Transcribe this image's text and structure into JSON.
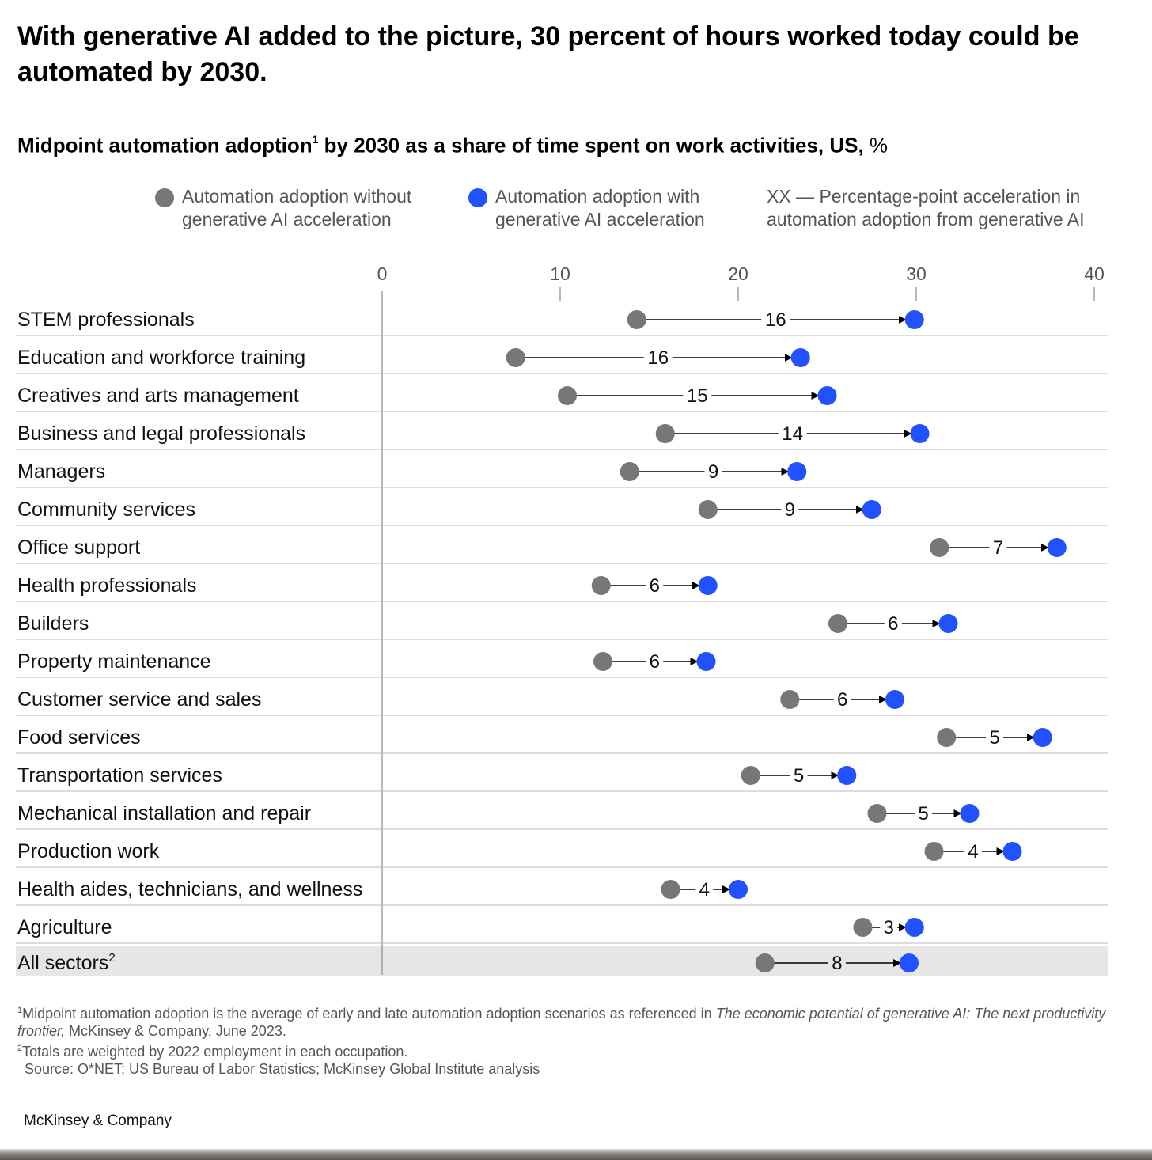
{
  "header": {
    "title": "With generative AI added to the picture, 30 percent of hours worked today could be automated by 2030.",
    "subtitle_bold": "Midpoint automation adoption",
    "subtitle_sup": "1",
    "subtitle_bold_2": " by 2030 as a share of time spent on work activities, US,",
    "subtitle_unit": " %"
  },
  "legend": {
    "without_label": "Automation adoption without generative AI acceleration",
    "with_label": "Automation adoption with generative AI acceleration",
    "xx_label": "XX — Percentage-point acceleration in automation adoption from generative AI"
  },
  "colors": {
    "without": "#777777",
    "with": "#2251ff",
    "gridline": "#bbbbbb",
    "summary_band": "#e6e6e6"
  },
  "chart_data": {
    "type": "dumbbell",
    "xlim": [
      0,
      40
    ],
    "x_ticks": [
      0,
      10,
      20,
      30,
      40
    ],
    "legend_position": "top",
    "series": [
      {
        "name": "Automation adoption without generative AI acceleration"
      },
      {
        "name": "Automation adoption with generative AI acceleration"
      }
    ],
    "rows": [
      {
        "label": "STEM professionals",
        "sup": "",
        "without": 14.3,
        "with": 29.9,
        "delta": "16",
        "summary": false
      },
      {
        "label": "Education and workforce training",
        "sup": "",
        "without": 7.5,
        "with": 23.5,
        "delta": "16",
        "summary": false
      },
      {
        "label": "Creatives and arts management",
        "sup": "",
        "without": 10.4,
        "with": 25.0,
        "delta": "15",
        "summary": false
      },
      {
        "label": "Business and legal professionals",
        "sup": "",
        "without": 15.9,
        "with": 30.2,
        "delta": "14",
        "summary": false
      },
      {
        "label": "Managers",
        "sup": "",
        "without": 13.9,
        "with": 23.3,
        "delta": "9",
        "summary": false
      },
      {
        "label": "Community services",
        "sup": "",
        "without": 18.3,
        "with": 27.5,
        "delta": "9",
        "summary": false
      },
      {
        "label": "Office support",
        "sup": "",
        "without": 31.3,
        "with": 37.9,
        "delta": "7",
        "summary": false
      },
      {
        "label": "Health professionals",
        "sup": "",
        "without": 12.3,
        "with": 18.3,
        "delta": "6",
        "summary": false
      },
      {
        "label": "Builders",
        "sup": "",
        "without": 25.6,
        "with": 31.8,
        "delta": "6",
        "summary": false
      },
      {
        "label": "Property maintenance",
        "sup": "",
        "without": 12.4,
        "with": 18.2,
        "delta": "6",
        "summary": false
      },
      {
        "label": "Customer service and sales",
        "sup": "",
        "without": 22.9,
        "with": 28.8,
        "delta": "6",
        "summary": false
      },
      {
        "label": "Food services",
        "sup": "",
        "without": 31.7,
        "with": 37.1,
        "delta": "5",
        "summary": false
      },
      {
        "label": "Transportation services",
        "sup": "",
        "without": 20.7,
        "with": 26.1,
        "delta": "5",
        "summary": false
      },
      {
        "label": "Mechanical installation and repair",
        "sup": "",
        "without": 27.8,
        "with": 33.0,
        "delta": "5",
        "summary": false
      },
      {
        "label": "Production work",
        "sup": "",
        "without": 31.0,
        "with": 35.4,
        "delta": "4",
        "summary": false
      },
      {
        "label": "Health aides, technicians, and wellness",
        "sup": "",
        "without": 16.2,
        "with": 20.0,
        "delta": "4",
        "summary": false
      },
      {
        "label": "Agriculture",
        "sup": "",
        "without": 27.0,
        "with": 29.9,
        "delta": "3",
        "summary": false
      },
      {
        "label": "All sectors",
        "sup": "2",
        "without": 21.5,
        "with": 29.6,
        "delta": "8",
        "summary": true
      }
    ]
  },
  "footnotes": {
    "fn1_sup": "1",
    "fn1_text": "Midpoint automation adoption is the average of early and late automation adoption scenarios as referenced in ",
    "fn1_italic": "The economic potential of generative AI: The next productivity frontier,",
    "fn1_tail": " McKinsey & Company, June 2023.",
    "fn2_sup": "2",
    "fn2_text": "Totals are weighted by 2022 employment in each occupation.",
    "source": "Source: O*NET; US Bureau of Labor Statistics; McKinsey Global Institute analysis"
  },
  "brand": "McKinsey & Company"
}
